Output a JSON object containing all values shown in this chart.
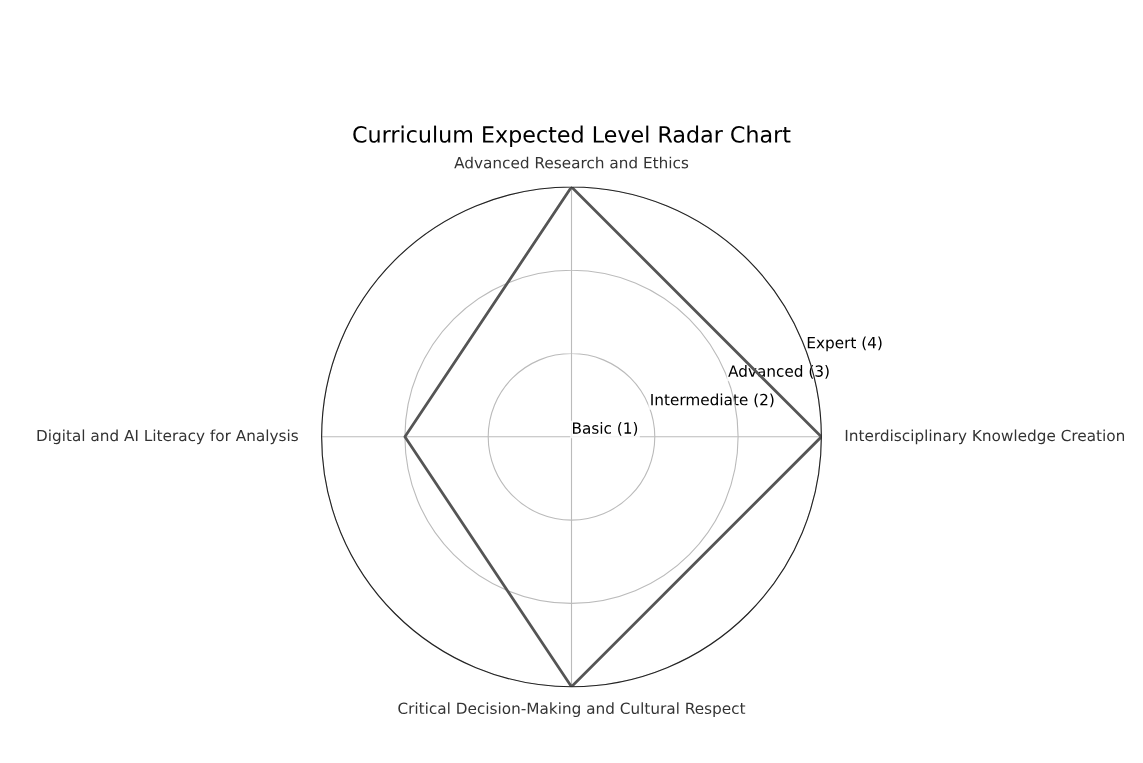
{
  "chart_data": {
    "type": "radar",
    "title": "Curriculum Expected Level Radar Chart",
    "categories": [
      "Advanced Research and Ethics",
      "Interdisciplinary Knowledge Creation",
      "Critical Decision-Making and Cultural Respect",
      "Digital and AI Literacy for Analysis"
    ],
    "series": [
      {
        "color": "#555555",
        "values": [
          4,
          4,
          4,
          3
        ]
      }
    ],
    "ylim": [
      1,
      4
    ],
    "yticks": [
      {
        "value": 1,
        "label": "Basic (1)"
      },
      {
        "value": 2,
        "label": "Intermediate (2)"
      },
      {
        "value": 3,
        "label": "Advanced (3)"
      },
      {
        "value": 4,
        "label": "Expert (4)"
      }
    ],
    "grid": true
  }
}
